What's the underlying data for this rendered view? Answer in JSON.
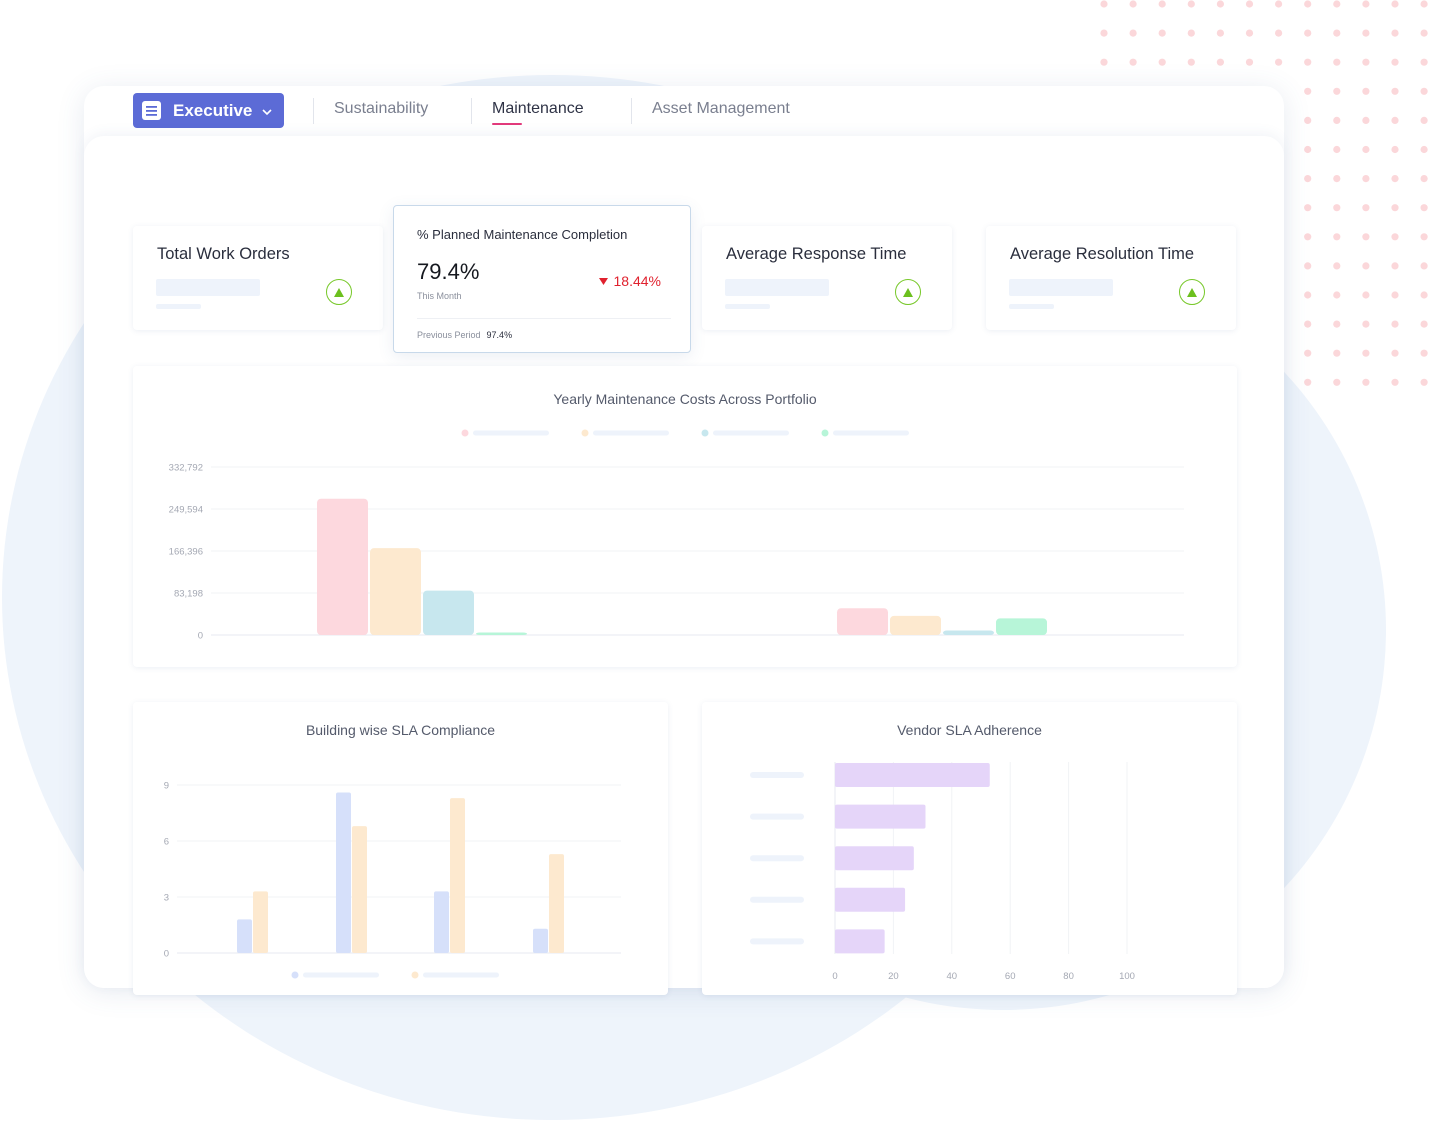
{
  "nav": {
    "dashboard_selector": "Executive",
    "tabs": [
      {
        "label": "Sustainability",
        "active": false
      },
      {
        "label": "Maintenance",
        "active": true
      },
      {
        "label": "Asset Management",
        "active": false
      }
    ],
    "accent_color": "#5c6bd6",
    "active_tab_underline_color": "#e23a7c"
  },
  "kpis": [
    {
      "title": "Total Work Orders",
      "trend": "up"
    },
    {
      "title": "% Planned Maintenance Completion",
      "value": "79.4%",
      "value_caption": "This Month",
      "change": "18.44%",
      "change_direction": "down",
      "previous_label": "Previous Period",
      "previous_value": "97.4%"
    },
    {
      "title": "Average Response Time",
      "trend": "up"
    },
    {
      "title": "Average Resolution Time",
      "trend": "up"
    }
  ],
  "chart_data": [
    {
      "type": "bar",
      "title": "Yearly Maintenance Costs Across Portfolio",
      "yticks": [
        "0",
        "83,198",
        "166,396",
        "249,594",
        "332,792"
      ],
      "ylim": [
        0,
        332792
      ],
      "series": [
        {
          "color": "#fdd8de",
          "values": [
            270000,
            53000
          ]
        },
        {
          "color": "#fde9cf",
          "values": [
            172000,
            38000
          ]
        },
        {
          "color": "#c7e7ee",
          "values": [
            88000,
            9000
          ]
        },
        {
          "color": "#b7f5d8",
          "values": [
            5000,
            33000
          ]
        }
      ],
      "legend": "top",
      "grid": true
    },
    {
      "type": "bar",
      "title": "Building wise SLA Compliance",
      "yticks": [
        "0",
        "3",
        "6",
        "9"
      ],
      "ylim": [
        0,
        9
      ],
      "series": [
        {
          "color": "#d6e0fa",
          "values": [
            1.8,
            8.6,
            3.3,
            1.3
          ]
        },
        {
          "color": "#fde9cf",
          "values": [
            3.3,
            6.8,
            8.3,
            5.3
          ]
        }
      ],
      "legend": "bottom",
      "grid": true
    },
    {
      "type": "bar",
      "orientation": "horizontal",
      "title": "Vendor SLA Adherence",
      "xticks": [
        "0",
        "20",
        "40",
        "60",
        "80",
        "100"
      ],
      "xlim": [
        0,
        100
      ],
      "series": [
        {
          "color": "#e5d5f9",
          "values": [
            53,
            31,
            27,
            24,
            17
          ]
        }
      ],
      "grid": true
    }
  ]
}
